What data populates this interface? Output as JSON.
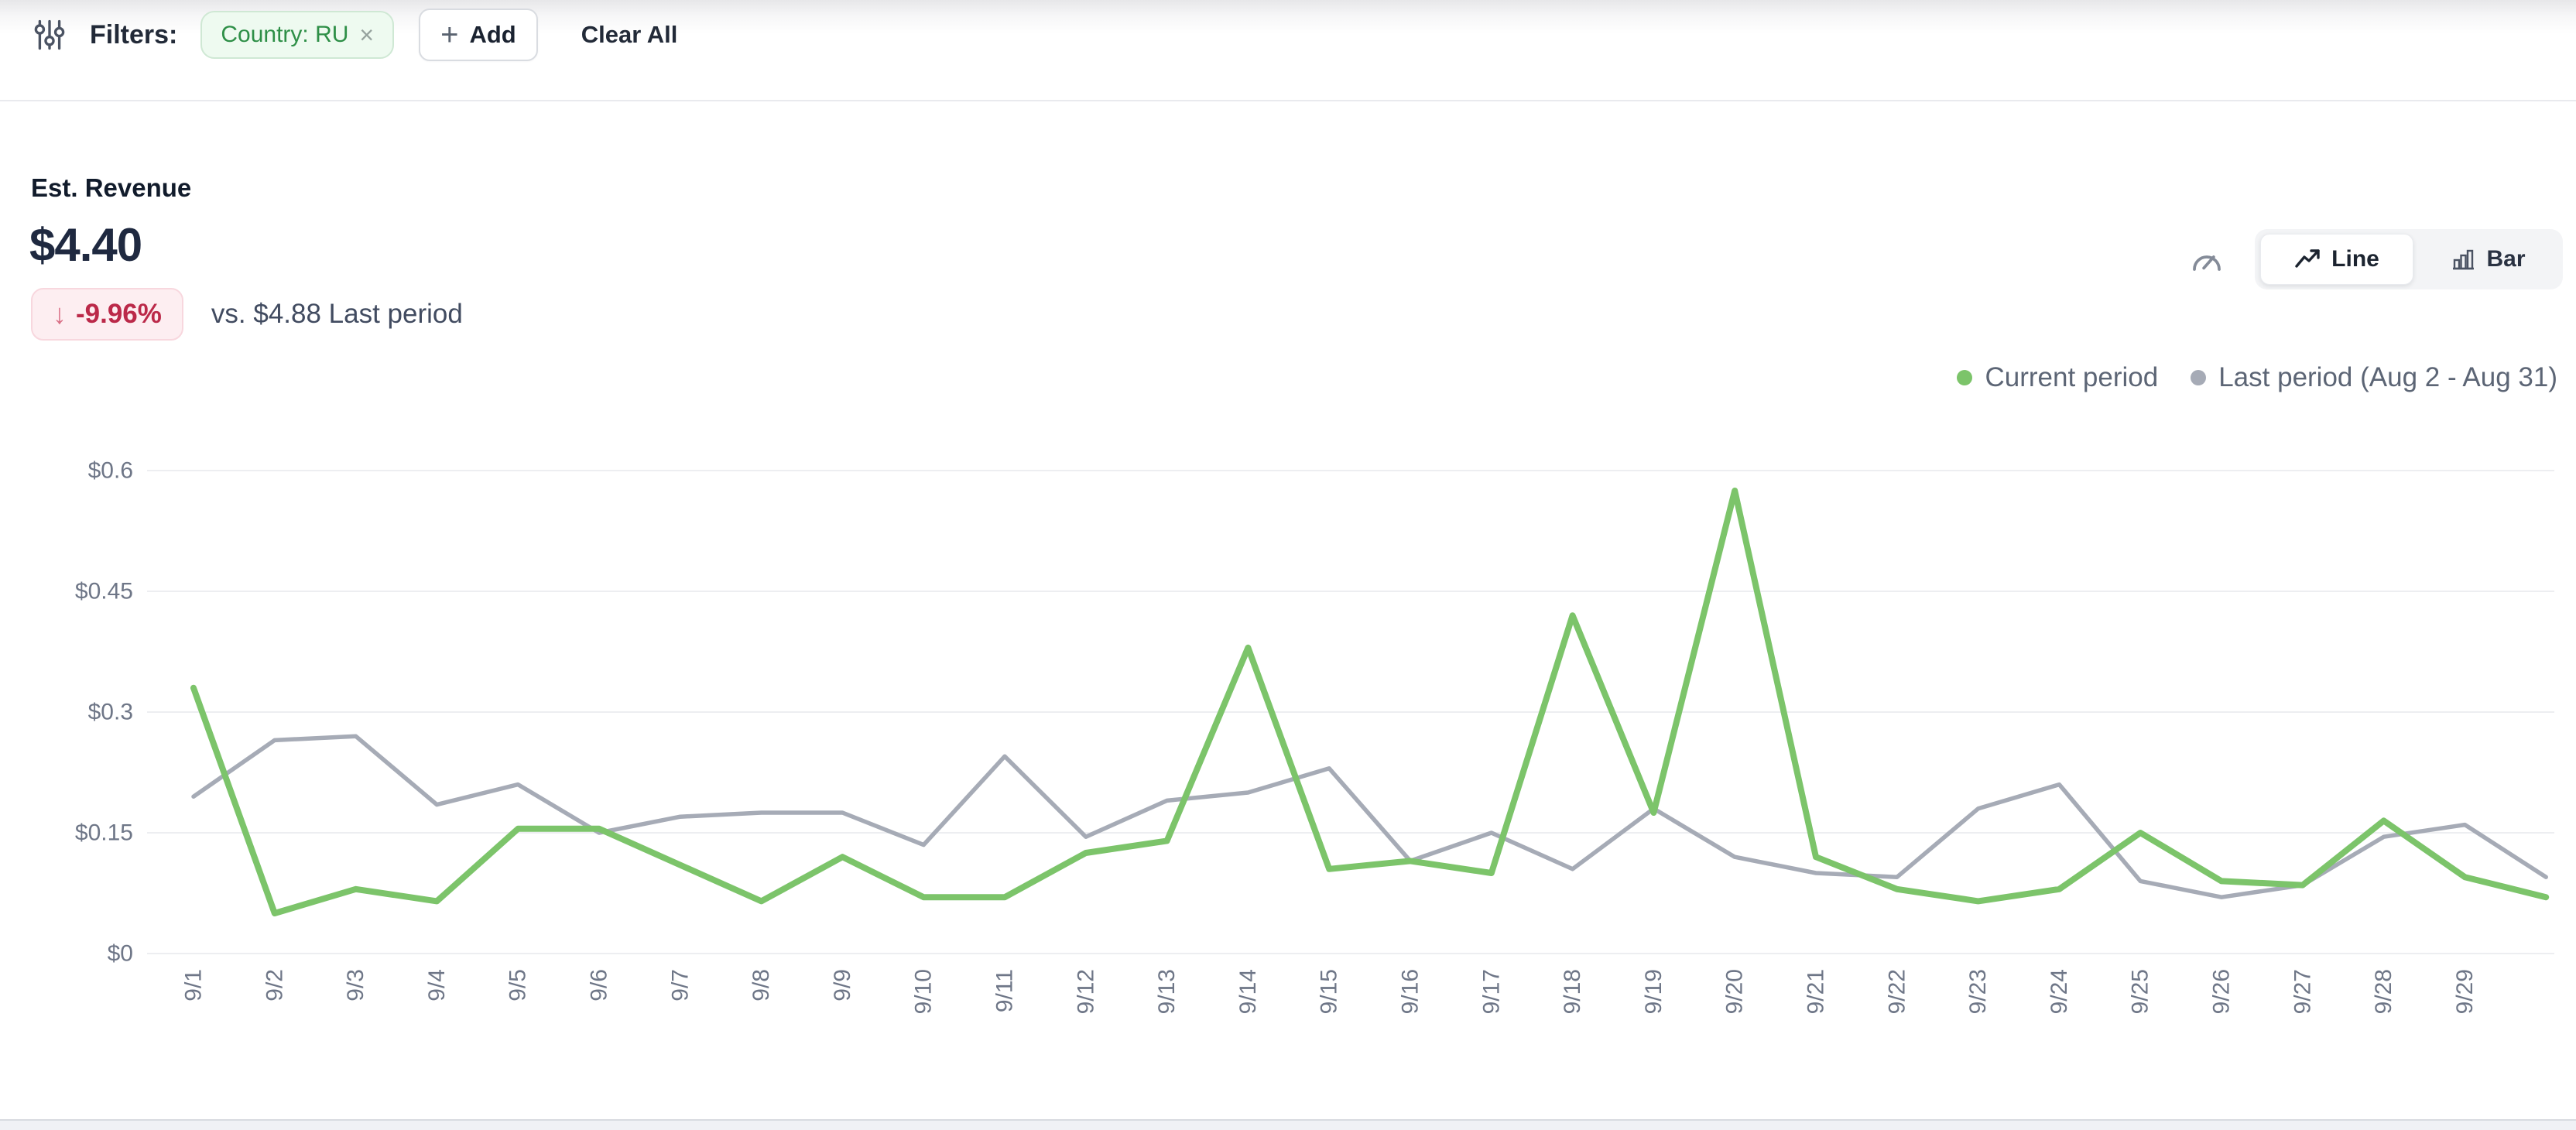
{
  "filter_bar": {
    "label": "Filters:",
    "chip": {
      "text": "Country: RU",
      "remove": "×"
    },
    "add_button": "Add",
    "add_plus": "+",
    "clear_all": "Clear All"
  },
  "kpi": {
    "title": "Est. Revenue",
    "value": "$4.40",
    "change": "-9.96%",
    "change_arrow": "↓",
    "change_direction": "down",
    "comparison": "vs. $4.88 Last period"
  },
  "view_toggle": {
    "line_label": "Line",
    "bar_label": "Bar",
    "active": "Line"
  },
  "legend": {
    "current": "Current period",
    "last": "Last period (Aug 2 - Aug 31)"
  },
  "chart_data": {
    "type": "line",
    "title": "Est. Revenue",
    "xlabel": "",
    "ylabel": "",
    "ylim": [
      0,
      0.6
    ],
    "grid": "horizontal",
    "legend_position": "top-right",
    "y_ticks": [
      {
        "value": 0,
        "label": "$0"
      },
      {
        "value": 0.15,
        "label": "$0.15"
      },
      {
        "value": 0.3,
        "label": "$0.3"
      },
      {
        "value": 0.45,
        "label": "$0.45"
      },
      {
        "value": 0.6,
        "label": "$0.6"
      }
    ],
    "x_labels": [
      "9/1",
      "9/2",
      "9/3",
      "9/4",
      "9/5",
      "9/6",
      "9/7",
      "9/8",
      "9/9",
      "9/10",
      "9/11",
      "9/12",
      "9/13",
      "9/14",
      "9/15",
      "9/16",
      "9/17",
      "9/18",
      "9/19",
      "9/20",
      "9/21",
      "9/22",
      "9/23",
      "9/24",
      "9/25",
      "9/26",
      "9/27",
      "9/28",
      "9/29",
      ""
    ],
    "series": [
      {
        "name": "Current period",
        "color": "#7cc46a",
        "stroke_width": 8,
        "values": [
          0.33,
          0.05,
          0.08,
          0.065,
          0.155,
          0.155,
          0.11,
          0.065,
          0.12,
          0.07,
          0.07,
          0.125,
          0.14,
          0.38,
          0.105,
          0.115,
          0.1,
          0.42,
          0.175,
          0.575,
          0.12,
          0.08,
          0.065,
          0.08,
          0.15,
          0.09,
          0.085,
          0.165,
          0.095,
          0.07
        ]
      },
      {
        "name": "Last period (Aug 2 - Aug 31)",
        "color": "#a6abb6",
        "stroke_width": 5.5,
        "values": [
          0.195,
          0.265,
          0.27,
          0.185,
          0.21,
          0.15,
          0.17,
          0.175,
          0.175,
          0.135,
          0.245,
          0.145,
          0.19,
          0.2,
          0.23,
          0.115,
          0.15,
          0.105,
          0.18,
          0.12,
          0.1,
          0.095,
          0.18,
          0.21,
          0.09,
          0.07,
          0.085,
          0.145,
          0.16,
          0.095
        ]
      }
    ]
  }
}
